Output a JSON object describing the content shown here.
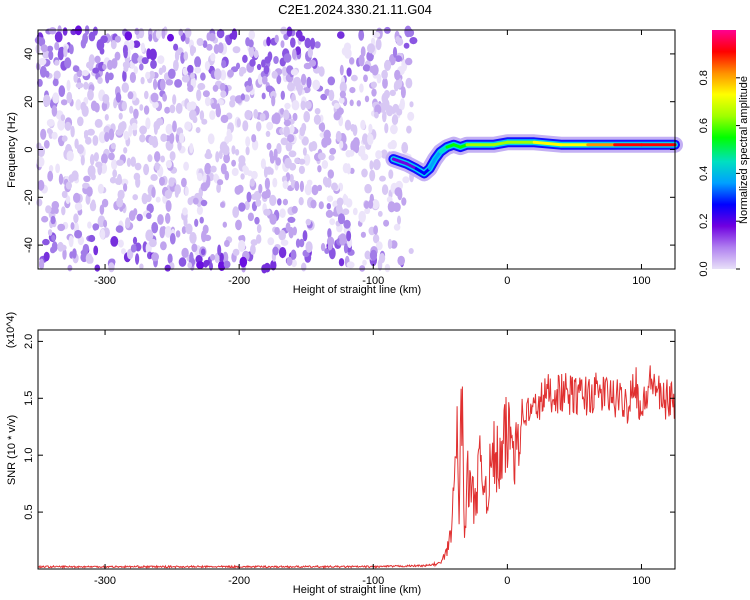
{
  "title": "C2E1.2024.330.21.11.G04",
  "chart_data": [
    {
      "type": "heatmap",
      "xlabel": "Height of straight line (km)",
      "ylabel": "Frequency (Hz)",
      "xlim": [
        -350,
        125
      ],
      "ylim": [
        -50,
        50
      ],
      "xticks": [
        -300,
        -200,
        -100,
        0,
        100
      ],
      "yticks": [
        -40,
        -20,
        0,
        20,
        40
      ],
      "colorbar": {
        "label": "Normalized spectral amplitude",
        "range": [
          0,
          1
        ],
        "ticks": [
          "0.0",
          "0.2",
          "0.4",
          "0.6",
          "0.8"
        ],
        "colormap": [
          "#e8e0f8",
          "#b080f0",
          "#7000e0",
          "#0000ff",
          "#00a0ff",
          "#00e0c0",
          "#00ff00",
          "#a0ff00",
          "#ffff00",
          "#ff9000",
          "#ff0000",
          "#ff0090"
        ]
      },
      "noise_region_x": [
        -350,
        -70
      ],
      "signal_track": {
        "x": [
          -85,
          -75,
          -68,
          -62,
          -58,
          -54,
          -50,
          -45,
          -40,
          -35,
          -30,
          -20,
          -10,
          0,
          20,
          40,
          60,
          80,
          100,
          125
        ],
        "frequency": [
          -4,
          -6,
          -8,
          -10,
          -8,
          -4,
          -1,
          1,
          2,
          1,
          2,
          2,
          2,
          3,
          3,
          2,
          2,
          2,
          2,
          2
        ],
        "amplitude": [
          0.15,
          0.2,
          0.25,
          0.3,
          0.35,
          0.4,
          0.45,
          0.5,
          0.5,
          0.55,
          0.6,
          0.65,
          0.65,
          0.6,
          0.7,
          0.75,
          0.85,
          0.9,
          0.9,
          0.85
        ]
      },
      "grid": false
    },
    {
      "type": "line",
      "xlabel": "Height of straight line (km)",
      "ylabel": "SNR (10 * v/v)",
      "y_multiplier": "(x10^4)",
      "xlim": [
        -350,
        125
      ],
      "ylim": [
        0,
        2.1
      ],
      "xticks": [
        -300,
        -200,
        -100,
        0,
        100
      ],
      "yticks": [
        0.5,
        1.0,
        1.5,
        2.0
      ],
      "ytick_labels": [
        "0.5",
        "1.0",
        "1.5",
        "2.0"
      ],
      "color": "#e03030",
      "series": [
        {
          "x": [
            -350,
            -300,
            -250,
            -200,
            -150,
            -100,
            -60,
            -50,
            -45,
            -42,
            -40,
            -38,
            -36,
            -34,
            -32,
            -30,
            -25,
            -20,
            -15,
            -10,
            -5,
            0,
            5,
            10,
            20,
            30,
            40,
            50,
            60,
            70,
            80,
            90,
            95,
            100,
            105,
            110,
            115,
            120,
            125
          ],
          "values": [
            0.02,
            0.02,
            0.02,
            0.02,
            0.02,
            0.02,
            0.03,
            0.05,
            0.15,
            0.35,
            0.6,
            1.3,
            0.5,
            1.6,
            0.3,
            0.8,
            0.6,
            0.9,
            0.7,
            1.0,
            0.9,
            1.2,
            1.1,
            1.35,
            1.4,
            1.55,
            1.55,
            1.52,
            1.53,
            1.55,
            1.5,
            1.45,
            1.7,
            1.35,
            1.6,
            1.65,
            1.45,
            1.5,
            1.45
          ]
        }
      ],
      "grid": false
    }
  ]
}
